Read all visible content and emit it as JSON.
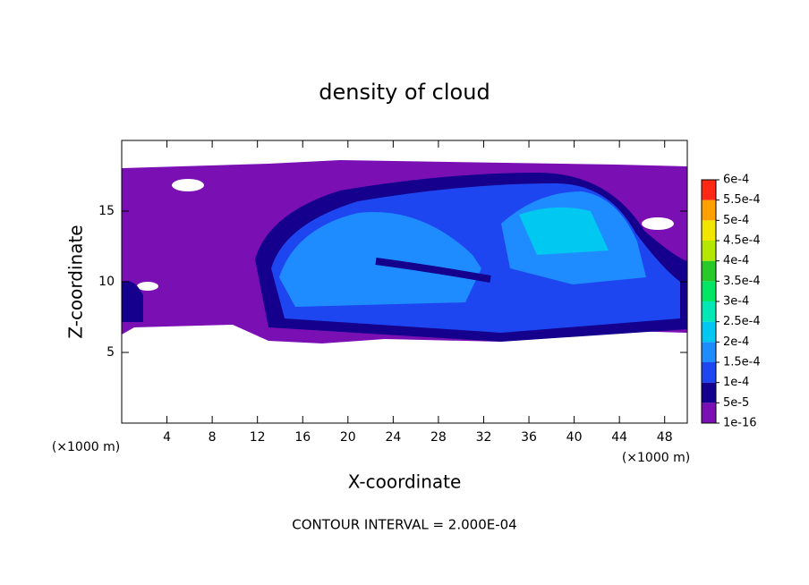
{
  "chart_data": {
    "type": "contour",
    "title": "density of cloud",
    "x_label": "X-coordinate",
    "y_label": "Z-coordinate",
    "x_unit": "(×1000 m)",
    "y_unit": "(×1000 m)",
    "footer": "CONTOUR INTERVAL = 2.000E-04",
    "xlim": [
      0,
      50
    ],
    "ylim": [
      0,
      20
    ],
    "xticks": [
      4,
      8,
      12,
      16,
      20,
      24,
      28,
      32,
      36,
      40,
      44,
      48
    ],
    "yticks": [
      5,
      10,
      15
    ],
    "colorbar_ticks": [
      {
        "value": 1e-16,
        "label": "1e-16"
      },
      {
        "value": 5e-05,
        "label": "5e-5"
      },
      {
        "value": 0.0001,
        "label": "1e-4"
      },
      {
        "value": 0.00015,
        "label": "1.5e-4"
      },
      {
        "value": 0.0002,
        "label": "2e-4"
      },
      {
        "value": 0.00025,
        "label": "2.5e-4"
      },
      {
        "value": 0.0003,
        "label": "3e-4"
      },
      {
        "value": 0.00035,
        "label": "3.5e-4"
      },
      {
        "value": 0.0004,
        "label": "4e-4"
      },
      {
        "value": 0.00045,
        "label": "4.5e-4"
      },
      {
        "value": 0.0005,
        "label": "5e-4"
      },
      {
        "value": 0.00055,
        "label": "5.5e-4"
      },
      {
        "value": 0.0006,
        "label": "6e-4"
      }
    ],
    "colors": [
      "#7a0fb4",
      "#14008c",
      "#1e46f0",
      "#1e8cff",
      "#00c8f0",
      "#00e6b4",
      "#00e664",
      "#28c828",
      "#b4e600",
      "#f0e600",
      "#ffa000",
      "#ff2814"
    ]
  }
}
